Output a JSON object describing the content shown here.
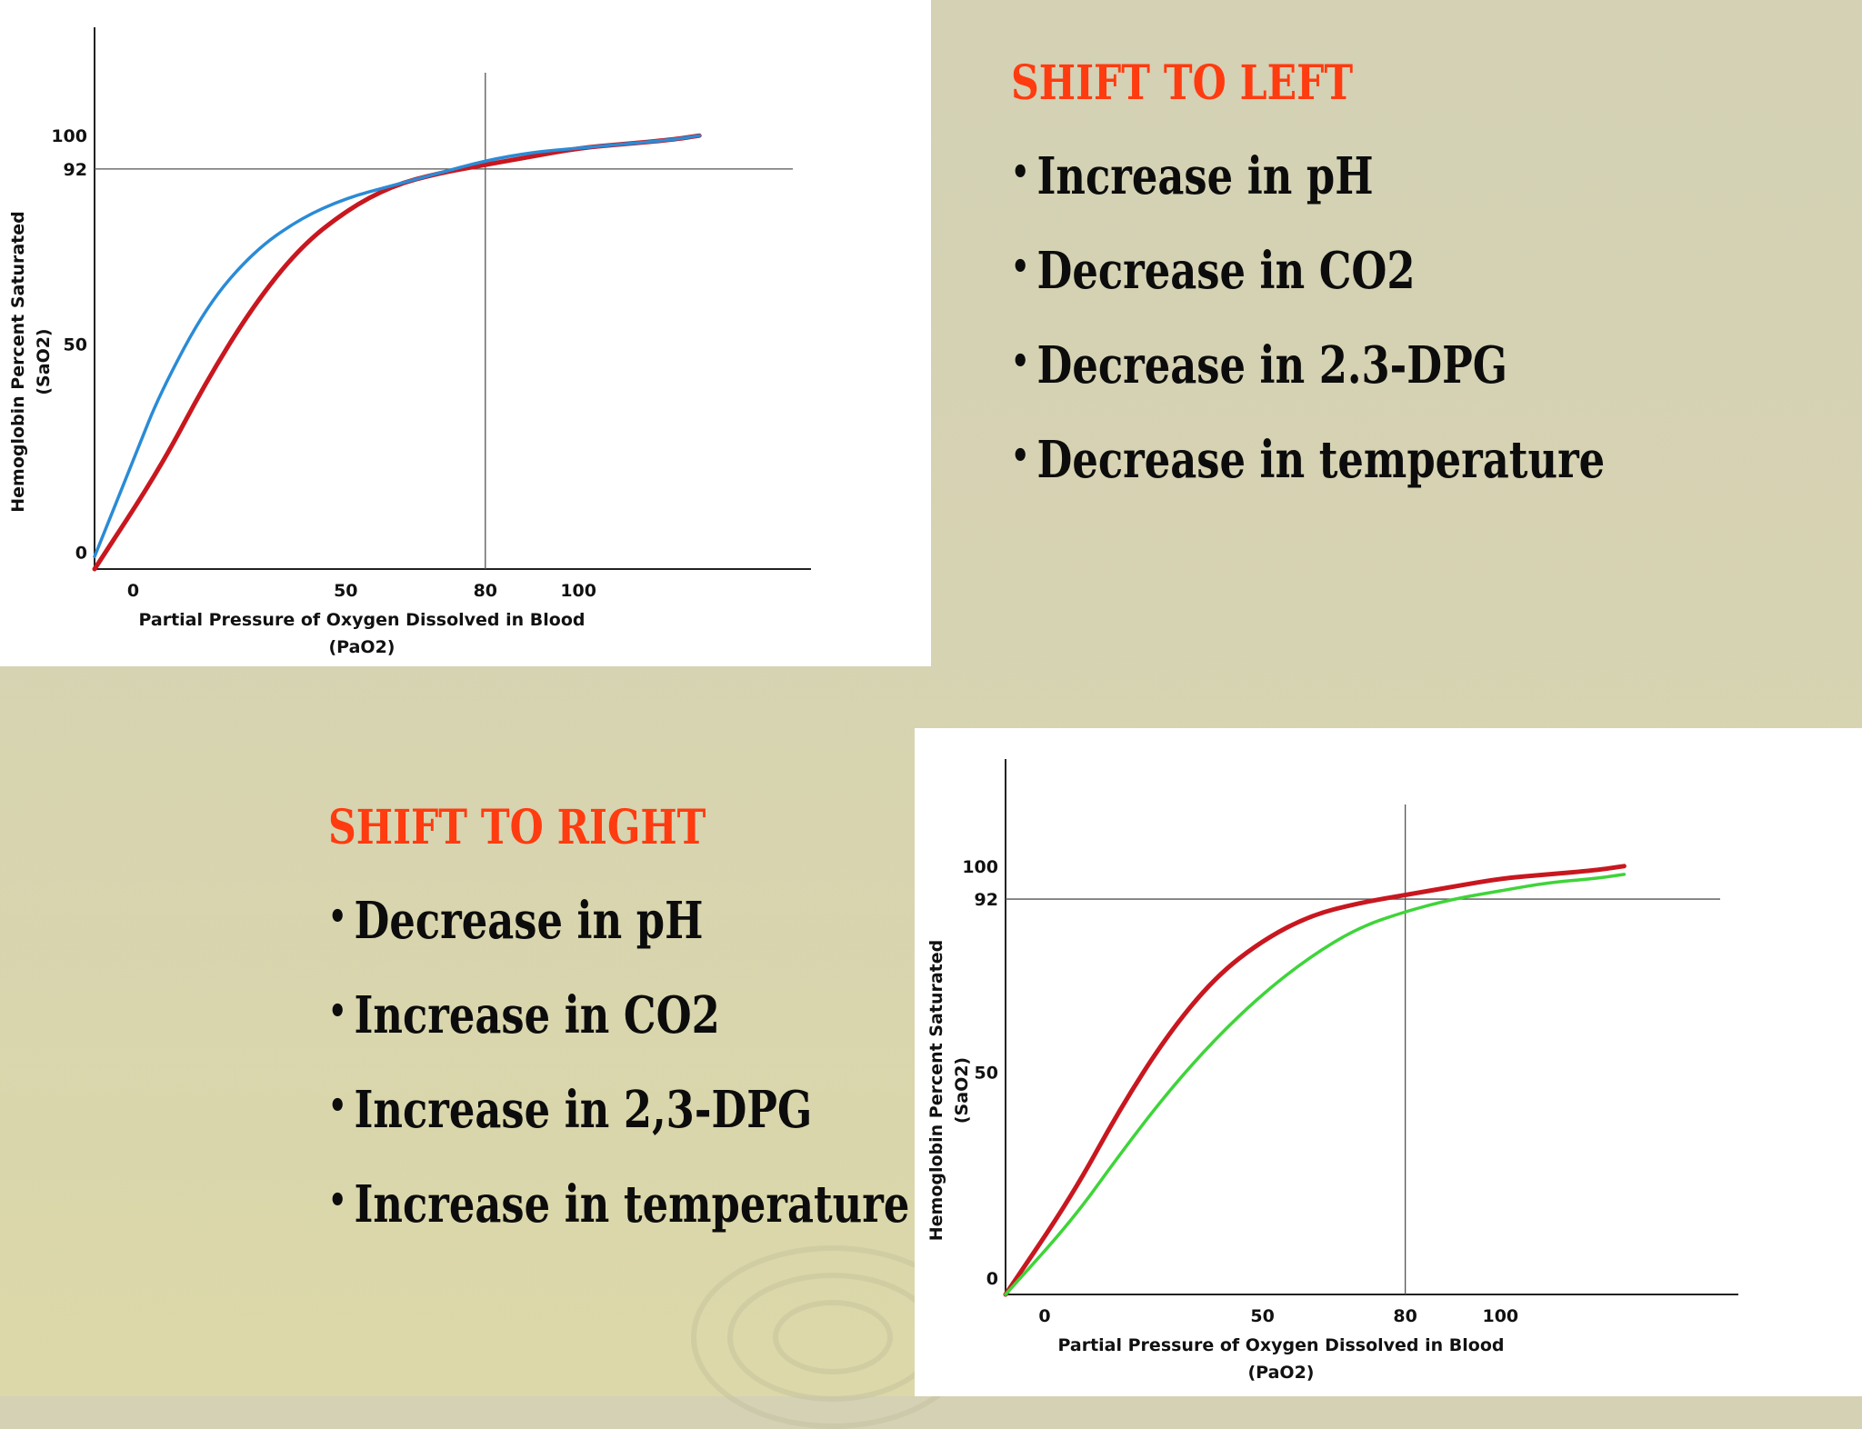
{
  "shift_left": {
    "heading": "SHIFT TO LEFT",
    "items": [
      "Increase in pH",
      "Decrease in CO2",
      "Decrease in 2.3-DPG",
      "Decrease in temperature"
    ]
  },
  "shift_right": {
    "heading": "SHIFT TO RIGHT",
    "items": [
      "Decrease in pH",
      "Increase in CO2",
      "Increase in 2,3-DPG",
      "Increase in temperature"
    ]
  },
  "colors": {
    "heading": "#ff3b10",
    "text": "#0c0c0c",
    "normal_curve": "#c8171f",
    "left_curve": "#2a8bd6",
    "right_curve": "#3fd43a"
  },
  "chart_data": [
    {
      "type": "line",
      "xlabel": "Partial Pressure of Oxygen Dissolved in Blood",
      "xlabel2": "(PaO2)",
      "ylabel": "Hemoglobin Percent Saturated",
      "ylabel2": "(SaO2)",
      "xticks": [
        "0",
        "50",
        "80",
        "100"
      ],
      "xtick_values": [
        0,
        50,
        80,
        100
      ],
      "yticks": [
        "0",
        "50",
        "92",
        "100"
      ],
      "ytick_values": [
        0,
        50,
        92,
        100
      ],
      "xlim": [
        -4,
        150
      ],
      "ylim": [
        -4,
        126
      ],
      "reference": {
        "x": 80,
        "y": 92
      },
      "series": [
        {
          "color": "#c8171f",
          "x": [
            -4,
            10,
            20,
            30,
            40,
            50,
            60,
            70,
            80,
            90,
            100,
            110,
            120,
            126
          ],
          "y": [
            -4,
            20,
            41,
            59,
            73,
            82,
            88,
            91,
            93,
            95,
            97,
            98,
            99,
            100
          ]
        },
        {
          "color": "#2a8bd6",
          "x": [
            -4,
            5,
            10,
            20,
            30,
            40,
            50,
            60,
            70,
            80,
            90,
            100,
            110,
            120,
            126
          ],
          "y": [
            -1,
            24,
            38,
            59,
            72,
            80,
            85,
            88,
            91,
            94,
            96,
            97,
            98,
            99,
            100
          ]
        }
      ]
    },
    {
      "type": "line",
      "xlabel": "Partial Pressure of Oxygen Dissolved in Blood",
      "xlabel2": "(PaO2)",
      "ylabel": "Hemoglobin Percent Saturated",
      "ylabel2": "(SaO2)",
      "xticks": [
        "0",
        "50",
        "80",
        "100"
      ],
      "xtick_values": [
        0,
        50,
        80,
        100
      ],
      "yticks": [
        "0",
        "50",
        "92",
        "100"
      ],
      "ytick_values": [
        0,
        50,
        92,
        100
      ],
      "xlim": [
        -4,
        150
      ],
      "ylim": [
        -4,
        126
      ],
      "reference": {
        "x": 80,
        "y": 92
      },
      "series": [
        {
          "color": "#c8171f",
          "x": [
            -4,
            10,
            20,
            30,
            40,
            50,
            60,
            70,
            80,
            90,
            100,
            110,
            120,
            126
          ],
          "y": [
            -4,
            20,
            41,
            59,
            73,
            82,
            88,
            91,
            93,
            95,
            97,
            98,
            99,
            100
          ]
        },
        {
          "color": "#3fd43a",
          "x": [
            -4,
            10,
            20,
            30,
            40,
            50,
            60,
            70,
            80,
            90,
            100,
            110,
            120,
            126
          ],
          "y": [
            -4,
            14,
            30,
            45,
            58,
            69,
            78,
            85,
            89,
            92,
            94,
            96,
            97,
            98
          ]
        }
      ]
    }
  ]
}
